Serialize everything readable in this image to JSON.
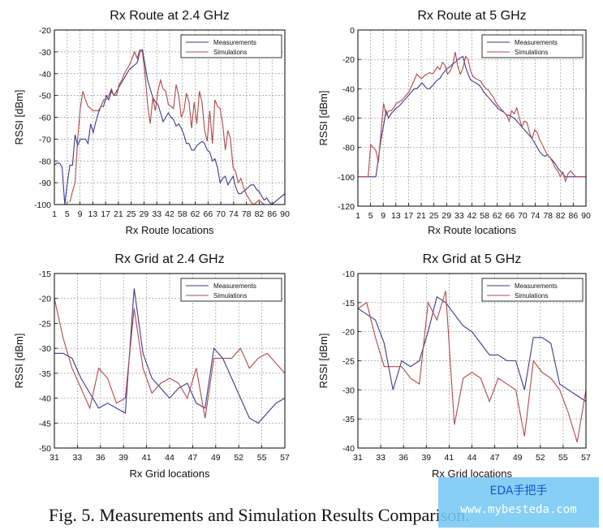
{
  "caption": "Fig. 5. Measurements and Simulation Results Comparison.",
  "watermark": {
    "line1": "EDA手把手",
    "line2": "www.mybesteda.com"
  },
  "colors": {
    "measurements": "#3a3a8c",
    "simulations": "#b04a4a"
  },
  "chart_data": [
    {
      "type": "line",
      "title": "Rx Route at 2.4 GHz",
      "xlabel": "Rx Route locations",
      "ylabel": "RSSI [dBm]",
      "xlim": [
        1,
        90
      ],
      "ylim": [
        -100,
        -20
      ],
      "xticks": [
        1,
        5,
        9,
        13,
        17,
        21,
        25,
        29,
        33,
        42,
        58,
        62,
        66,
        70,
        74,
        78,
        82,
        86,
        90
      ],
      "yticks": [
        -20,
        -30,
        -40,
        -50,
        -60,
        -70,
        -80,
        -90,
        -100
      ],
      "grid": true,
      "legend": "top-right",
      "series": [
        {
          "name": "Measurements",
          "x": [
            1,
            2,
            3,
            4,
            5,
            6,
            7,
            8,
            9,
            10,
            11,
            12,
            13,
            14,
            15,
            16,
            17,
            18,
            19,
            20,
            21,
            22,
            23,
            24,
            25,
            26,
            27,
            28,
            29,
            30,
            31,
            32,
            33,
            34,
            35,
            36,
            37,
            38,
            39,
            40,
            41,
            42,
            43,
            44,
            45,
            46,
            47,
            48,
            49,
            50,
            51,
            52,
            53,
            54,
            55,
            56,
            57,
            58,
            59,
            60,
            61,
            62,
            63,
            64,
            65,
            66,
            67,
            68,
            69,
            70,
            71,
            72,
            73,
            74,
            75,
            76,
            77,
            78,
            79,
            80,
            81,
            82,
            83,
            84,
            85,
            86,
            87,
            88,
            89,
            90
          ],
          "y": [
            -82,
            -81,
            -81,
            -83,
            -100,
            -90,
            -82,
            -82,
            -68,
            -73,
            -70,
            -70,
            -70,
            -72,
            -63,
            -67,
            -62,
            -58,
            -55,
            -55,
            -50,
            -52,
            -48,
            -50,
            -48,
            -46,
            -44,
            -42,
            -40,
            -38,
            -37,
            -36,
            -35,
            -30,
            -29,
            -36,
            -43,
            -47,
            -51,
            -53,
            -54,
            -58,
            -62,
            -60,
            -58,
            -60,
            -61,
            -64,
            -63,
            -65,
            -68,
            -72,
            -72,
            -75,
            -75,
            -73,
            -72,
            -71,
            -72,
            -75,
            -76,
            -80,
            -79,
            -83,
            -90,
            -88,
            -87,
            -91,
            -89,
            -87,
            -92,
            -95,
            -95,
            -94,
            -93,
            -92,
            -91,
            -91,
            -93,
            -94,
            -96,
            -98,
            -97,
            -99,
            -100,
            -99,
            -98,
            -97,
            -96,
            -95
          ]
        },
        {
          "name": "Simulations",
          "x": [
            7,
            8,
            9,
            10,
            11,
            12,
            13,
            14,
            15,
            16,
            17,
            18,
            19,
            20,
            21,
            22,
            23,
            24,
            25,
            26,
            27,
            28,
            29,
            30,
            31,
            32,
            33,
            34,
            35,
            36,
            37,
            38,
            39,
            40,
            41,
            42,
            43,
            44,
            45,
            46,
            47,
            48,
            49,
            50,
            51,
            52,
            53,
            54,
            55,
            56,
            57,
            58,
            59,
            60,
            61,
            62,
            63,
            64,
            65,
            66,
            67,
            68,
            69,
            70,
            71,
            72,
            73,
            74,
            75,
            76,
            77,
            78,
            79,
            80,
            81,
            82,
            83
          ],
          "y": [
            -99,
            -94,
            -90,
            -70,
            -56,
            -48,
            -52,
            -55,
            -56,
            -57,
            -57,
            -57,
            -55,
            -52,
            -52,
            -50,
            -47,
            -50,
            -50,
            -45,
            -43,
            -40,
            -38,
            -36,
            -33,
            -30,
            -33,
            -29,
            -30,
            -40,
            -54,
            -63,
            -51,
            -57,
            -48,
            -43,
            -47,
            -48,
            -54,
            -55,
            -56,
            -45,
            -50,
            -60,
            -57,
            -49,
            -53,
            -65,
            -53,
            -63,
            -48,
            -53,
            -66,
            -71,
            -57,
            -72,
            -52,
            -55,
            -56,
            -63,
            -75,
            -66,
            -70,
            -83,
            -85,
            -90,
            -88,
            -92,
            -95,
            -97,
            -99,
            -100,
            -99,
            -98,
            -99,
            -100,
            -100
          ]
        }
      ]
    },
    {
      "type": "line",
      "title": "Rx Route at 5 GHz",
      "xlabel": "Rx Route locations",
      "ylabel": "RSSI [dBm]",
      "xlim": [
        1,
        90
      ],
      "ylim": [
        -120,
        0
      ],
      "xticks": [
        1,
        5,
        9,
        13,
        17,
        21,
        25,
        29,
        33,
        42,
        58,
        62,
        66,
        70,
        74,
        78,
        82,
        86,
        90
      ],
      "yticks": [
        0,
        -20,
        -40,
        -60,
        -80,
        -100,
        -120
      ],
      "grid": true,
      "legend": "top-right",
      "series": [
        {
          "name": "Measurements",
          "x": [
            1,
            5,
            8,
            10,
            11,
            12,
            13,
            14,
            15,
            16,
            17,
            18,
            19,
            20,
            21,
            22,
            23,
            24,
            25,
            26,
            27,
            28,
            29,
            30,
            31,
            32,
            33,
            34,
            35,
            36,
            37,
            38,
            39,
            40,
            41,
            42,
            43,
            44,
            45,
            46,
            47,
            48,
            49,
            50,
            51,
            52,
            53,
            54,
            55,
            56,
            57,
            58,
            59,
            60,
            61,
            62,
            63,
            64,
            65,
            66,
            67,
            68,
            69,
            70,
            71,
            72,
            73,
            74,
            75,
            76,
            77,
            78,
            79,
            80,
            81,
            82,
            84,
            87,
            90
          ],
          "y": [
            -100,
            -100,
            -100,
            -75,
            -65,
            -55,
            -60,
            -57,
            -55,
            -53,
            -52,
            -50,
            -48,
            -46,
            -44,
            -42,
            -40,
            -40,
            -38,
            -36,
            -38,
            -40,
            -40,
            -38,
            -36,
            -34,
            -33,
            -30,
            -28,
            -26,
            -25,
            -23,
            -22,
            -20,
            -19,
            -18,
            -25,
            -30,
            -34,
            -35,
            -36,
            -37,
            -39,
            -42,
            -44,
            -46,
            -48,
            -50,
            -52,
            -54,
            -55,
            -56,
            -58,
            -58,
            -59,
            -60,
            -62,
            -64,
            -66,
            -68,
            -70,
            -72,
            -74,
            -77,
            -80,
            -83,
            -85,
            -86,
            -85,
            -87,
            -89,
            -91,
            -94,
            -96,
            -98,
            -100,
            -100,
            -100,
            -100
          ]
        },
        {
          "name": "Simulations",
          "x": [
            1,
            5,
            6,
            7,
            8,
            9,
            10,
            11,
            12,
            13,
            14,
            15,
            16,
            17,
            18,
            19,
            20,
            21,
            22,
            23,
            24,
            25,
            26,
            27,
            28,
            29,
            30,
            31,
            32,
            33,
            34,
            35,
            36,
            37,
            38,
            39,
            40,
            41,
            42,
            43,
            44,
            45,
            46,
            47,
            48,
            49,
            50,
            51,
            52,
            53,
            54,
            55,
            56,
            57,
            58,
            59,
            60,
            61,
            62,
            63,
            64,
            65,
            66,
            67,
            68,
            69,
            70,
            71,
            72,
            73,
            74,
            75,
            76,
            77,
            78,
            79,
            80,
            81,
            82,
            83,
            84,
            86,
            90
          ],
          "y": [
            -100,
            -100,
            -78,
            -80,
            -82,
            -90,
            -70,
            -50,
            -58,
            -55,
            -55,
            -53,
            -50,
            -49,
            -48,
            -46,
            -44,
            -42,
            -38,
            -34,
            -30,
            -32,
            -33,
            -31,
            -30,
            -29,
            -30,
            -28,
            -25,
            -27,
            -22,
            -24,
            -30,
            -28,
            -24,
            -15,
            -25,
            -30,
            -26,
            -18,
            -20,
            -28,
            -32,
            -33,
            -34,
            -35,
            -38,
            -40,
            -41,
            -44,
            -46,
            -50,
            -52,
            -54,
            -56,
            -58,
            -62,
            -55,
            -57,
            -53,
            -60,
            -66,
            -62,
            -63,
            -70,
            -74,
            -68,
            -70,
            -75,
            -78,
            -82,
            -85,
            -87,
            -90,
            -94,
            -96,
            -100,
            -97,
            -103,
            -98,
            -96,
            -100,
            -100
          ]
        }
      ]
    },
    {
      "type": "line",
      "title": "Rx Grid at 2.4 GHz",
      "xlabel": "Rx Grid locations",
      "ylabel": "RSSI [dBm]",
      "xlim": [
        31,
        57
      ],
      "ylim": [
        -50,
        -15
      ],
      "xticks": [
        31,
        33,
        36,
        39,
        41,
        44,
        47,
        49,
        52,
        55,
        57
      ],
      "yticks": [
        -15,
        -20,
        -25,
        -30,
        -35,
        -40,
        -45,
        -50
      ],
      "grid": true,
      "legend": "top-right",
      "series": [
        {
          "name": "Measurements",
          "x": [
            31,
            32,
            33,
            34,
            35,
            36,
            37,
            38,
            39,
            40,
            41,
            42,
            43,
            44,
            45,
            46,
            47,
            48,
            49,
            50,
            51,
            52,
            53,
            54,
            55,
            56,
            57
          ],
          "y": [
            -31,
            -31,
            -32,
            -36,
            -39,
            -42,
            -41,
            -42,
            -43,
            -18,
            -31,
            -36,
            -38,
            -40,
            -38,
            -37,
            -41,
            -42,
            -30,
            -32,
            -36,
            -40,
            -44,
            -45,
            -43,
            -41,
            -40
          ]
        },
        {
          "name": "Simulations",
          "x": [
            31,
            32,
            33,
            34,
            35,
            36,
            37,
            38,
            39,
            40,
            41,
            42,
            43,
            44,
            45,
            46,
            47,
            48,
            49,
            50,
            51,
            52,
            53,
            54,
            55,
            56,
            57
          ],
          "y": [
            -20,
            -28,
            -34,
            -38,
            -42,
            -34,
            -36,
            -41,
            -40,
            -22,
            -34,
            -39,
            -37,
            -36,
            -37,
            -40,
            -34,
            -44,
            -32,
            -32,
            -32,
            -30,
            -34,
            -32,
            -31,
            -33,
            -35
          ]
        }
      ]
    },
    {
      "type": "line",
      "title": "Rx Grid at 5 GHz",
      "xlabel": "Rx Grid locations",
      "ylabel": "RSSI [dBm]",
      "xlim": [
        31,
        57
      ],
      "ylim": [
        -40,
        -10
      ],
      "xticks": [
        31,
        33,
        36,
        39,
        41,
        44,
        47,
        49,
        52,
        55,
        57
      ],
      "yticks": [
        -10,
        -15,
        -20,
        -25,
        -30,
        -35,
        -40
      ],
      "grid": true,
      "legend": "top-right",
      "series": [
        {
          "name": "Measurements",
          "x": [
            31,
            32,
            33,
            34,
            35,
            36,
            37,
            38,
            39,
            40,
            41,
            42,
            43,
            44,
            45,
            46,
            47,
            48,
            49,
            50,
            51,
            52,
            53,
            54,
            55,
            56,
            57
          ],
          "y": [
            -16,
            -17,
            -18,
            -22,
            -30,
            -25,
            -26,
            -25,
            -20,
            -14,
            -15,
            -17,
            -19,
            -20,
            -22,
            -24,
            -24,
            -25,
            -25,
            -30,
            -21,
            -21,
            -22,
            -29,
            -30,
            -31,
            -32
          ]
        },
        {
          "name": "Simulations",
          "x": [
            31,
            32,
            33,
            34,
            35,
            36,
            37,
            38,
            39,
            40,
            41,
            42,
            43,
            44,
            45,
            46,
            47,
            48,
            49,
            50,
            51,
            52,
            53,
            54,
            55,
            56,
            57
          ],
          "y": [
            -16,
            -15,
            -21,
            -26,
            -26,
            -26,
            -28,
            -29,
            -15,
            -18,
            -13,
            -36,
            -28,
            -27,
            -28,
            -32,
            -28,
            -29,
            -30,
            -38,
            -25,
            -27,
            -28,
            -30,
            -34,
            -39,
            -30
          ]
        }
      ]
    }
  ]
}
